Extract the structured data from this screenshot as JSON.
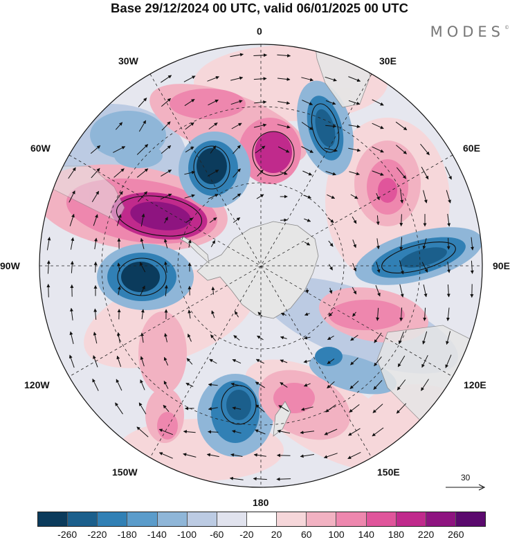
{
  "title": "Base 29/12/2024 00 UTC, valid 06/01/2025 00 UTC",
  "brand": "MODES",
  "brand_mark": "©",
  "labels": {
    "lon_0": "0",
    "lon_30e": "30E",
    "lon_60e": "60E",
    "lon_90e": "90E",
    "lon_120e": "120E",
    "lon_150e": "150E",
    "lon_180": "180",
    "lon_150w": "150W",
    "lon_120w": "120W",
    "lon_90w": "90W",
    "lon_60w": "60W",
    "lon_30w": "30W"
  },
  "reference_vector": "30",
  "colorbar": {
    "ticks": [
      "-260",
      "-220",
      "-180",
      "-140",
      "-100",
      "-60",
      "-20",
      "20",
      "60",
      "100",
      "140",
      "180",
      "220",
      "260"
    ],
    "colors": [
      "#0b3b5c",
      "#1b5f8c",
      "#3180b5",
      "#5b9ccb",
      "#8fb6d8",
      "#bccbe3",
      "#e1e3ee",
      "#ffffff",
      "#f6d7da",
      "#f2b2c2",
      "#ee87ae",
      "#e0559b",
      "#c02a8c",
      "#8e1480",
      "#5b0a6e"
    ]
  },
  "colors": {
    "land": "#e6e6e6",
    "coast": "#888888",
    "contour": "#000000"
  },
  "map": {
    "projection": "polar-stereographic-south",
    "field": "geopotential height anomaly",
    "anomalies": [
      {
        "sign": "negative",
        "level": -260,
        "region": "near 30W, 55S"
      },
      {
        "sign": "negative",
        "level": -220,
        "region": "near 80W, 60S"
      },
      {
        "sign": "negative",
        "level": -220,
        "region": "near 20E, 45S"
      },
      {
        "sign": "negative",
        "level": -180,
        "region": "near 160W, 60S"
      },
      {
        "sign": "negative",
        "level": -180,
        "region": "near 90E, 55S"
      },
      {
        "sign": "positive",
        "level": 260,
        "region": "near 60W, 60S"
      },
      {
        "sign": "positive",
        "level": 220,
        "region": "near 0, 55S"
      },
      {
        "sign": "positive",
        "level": 180,
        "region": "near 50E, 45S"
      },
      {
        "sign": "positive",
        "level": 140,
        "region": "near 105E, 60S"
      },
      {
        "sign": "positive",
        "level": 140,
        "region": "near 165E, 60S"
      }
    ]
  }
}
